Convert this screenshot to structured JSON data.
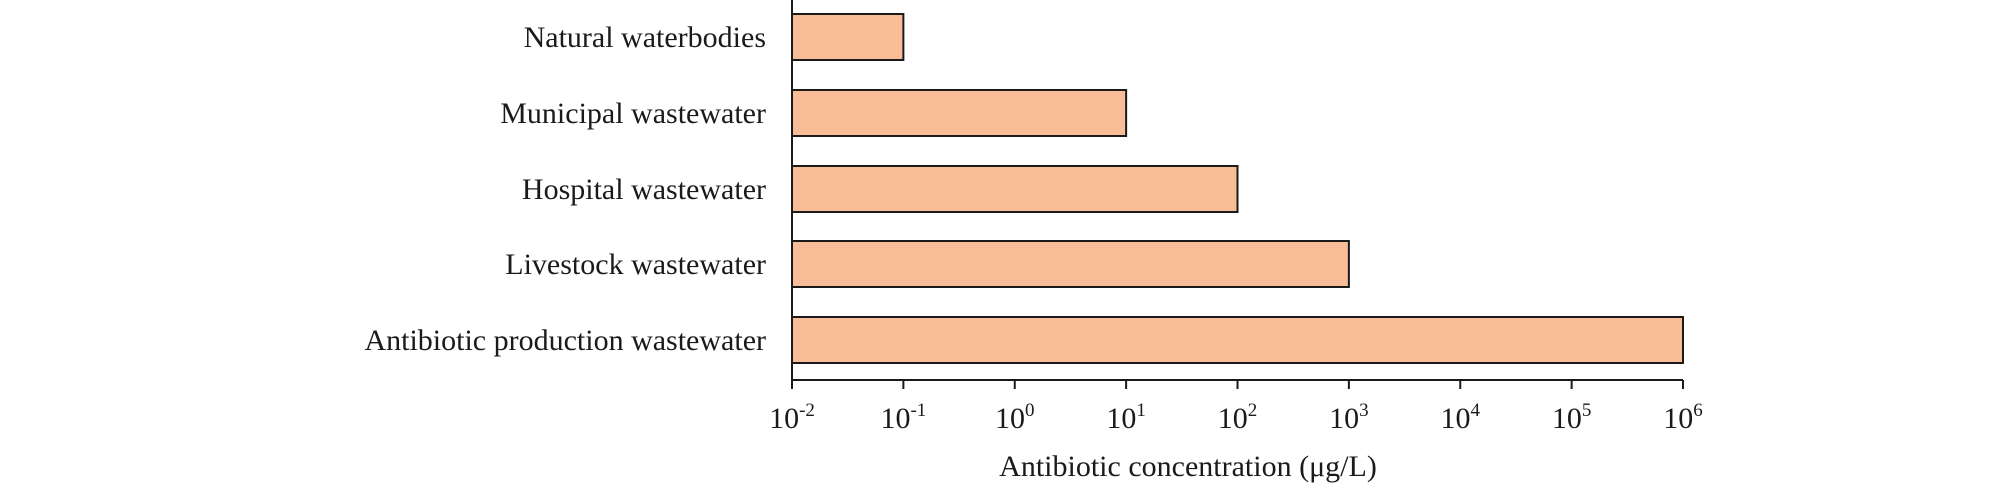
{
  "chart_data": {
    "type": "bar",
    "orientation": "horizontal",
    "categories": [
      "Natural waterbodies",
      "Municipal wastewater",
      "Hospital wastewater",
      "Livestock wastewater",
      "Antibiotic production wastewater"
    ],
    "values": [
      0.1,
      10,
      100,
      1000,
      1000000
    ],
    "xlabel": "Antibiotic concentration (μg/L)",
    "ylabel": "",
    "x_scale": "log",
    "xlim": [
      0.01,
      1000000
    ],
    "ticks": [
      {
        "base": "10",
        "exp": "-2"
      },
      {
        "base": "10",
        "exp": "-1"
      },
      {
        "base": "10",
        "exp": "0"
      },
      {
        "base": "10",
        "exp": "1"
      },
      {
        "base": "10",
        "exp": "2"
      },
      {
        "base": "10",
        "exp": "3"
      },
      {
        "base": "10",
        "exp": "4"
      },
      {
        "base": "10",
        "exp": "5"
      },
      {
        "base": "10",
        "exp": "6"
      }
    ],
    "grid": false,
    "legend": "none",
    "colors": {
      "bar_fill": "#F8BD96",
      "bar_stroke": "#1a1a1a",
      "axis": "#1a1a1a",
      "text": "#1a1a1a"
    }
  }
}
